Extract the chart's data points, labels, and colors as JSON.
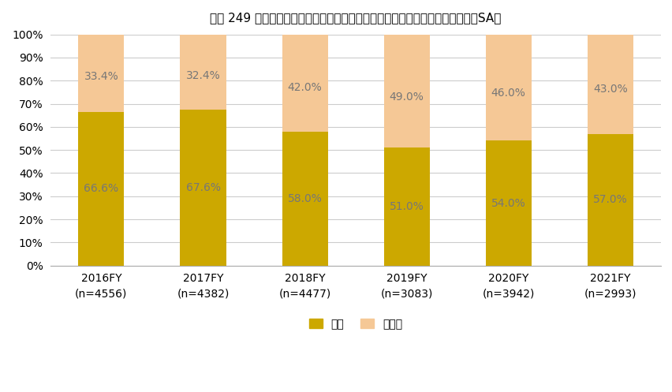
{
  "title": "図表 249 生産プロセスに関する設備の稼働状況等のデータ収集（時系列）　（SA）",
  "categories": [
    "2016FY\n(n=4556)",
    "2017FY\n(n=4382)",
    "2018FY\n(n=4477)",
    "2019FY\n(n=3083)",
    "2020FY\n(n=3942)",
    "2021FY\n(n=2993)"
  ],
  "hai_values": [
    66.6,
    67.6,
    58.0,
    51.0,
    54.0,
    57.0
  ],
  "iie_values": [
    33.4,
    32.4,
    42.0,
    49.0,
    46.0,
    43.0
  ],
  "hai_color": "#CCA800",
  "iie_color": "#F5C896",
  "bar_width": 0.45,
  "ylim": [
    0,
    100
  ],
  "yticks": [
    0,
    10,
    20,
    30,
    40,
    50,
    60,
    70,
    80,
    90,
    100
  ],
  "ytick_labels": [
    "0%",
    "10%",
    "20%",
    "30%",
    "40%",
    "50%",
    "60%",
    "70%",
    "80%",
    "90%",
    "100%"
  ],
  "legend_hai": "はい",
  "legend_iie": "いいえ",
  "background_color": "#ffffff",
  "grid_color": "#cccccc",
  "label_text_color": "#777777",
  "title_fontsize": 11,
  "label_fontsize": 10,
  "tick_fontsize": 10
}
